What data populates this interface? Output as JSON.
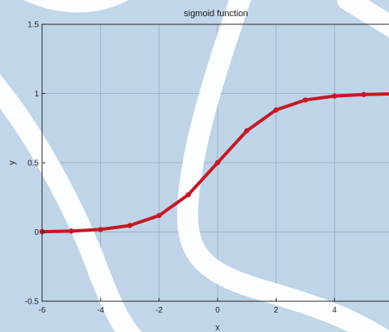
{
  "colors": {
    "background": "#c2d6ea",
    "plot_background": "#c0d4e8",
    "grid": "#9fb3c8",
    "axis": "#262626",
    "series": "#c21a26",
    "overlay": "#ffffff"
  },
  "chart_data": {
    "type": "line",
    "title": "sigmoid function",
    "xlabel": "x",
    "ylabel": "y",
    "xlim": [
      -6,
      6
    ],
    "ylim": [
      -0.5,
      1.5
    ],
    "grid": true,
    "xticks": [
      -6,
      -4,
      -2,
      0,
      2,
      4
    ],
    "xtick_labels": [
      "-6",
      "-4",
      "-2",
      "0",
      "2",
      "4"
    ],
    "yticks": [
      -0.5,
      0,
      0.5,
      1,
      1.5
    ],
    "ytick_labels": [
      "-0.5",
      "0",
      "0.5",
      "1",
      "1.5"
    ],
    "series": [
      {
        "x": [
          -6,
          -5,
          -4,
          -3,
          -2,
          -1,
          0,
          1,
          2,
          3,
          4,
          5,
          6
        ],
        "values": [
          0.0025,
          0.0067,
          0.018,
          0.047,
          0.119,
          0.269,
          0.5,
          0.731,
          0.881,
          0.953,
          0.982,
          0.993,
          0.9975
        ],
        "color": "#c21a26",
        "marker": "dot"
      }
    ]
  }
}
